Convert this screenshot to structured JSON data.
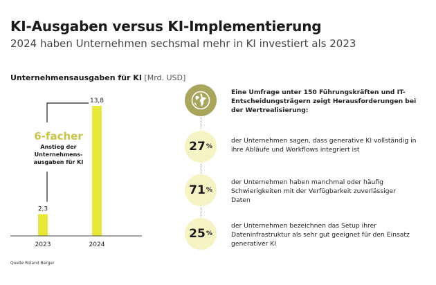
{
  "header": {
    "title": "KI-Ausgaben versus KI-Implementierung",
    "subtitle": "2024 haben Unternehmen sechsmal mehr in KI investiert als 2023"
  },
  "chart_data": {
    "type": "bar",
    "title": "Unternehmensausgaben für KI",
    "unit": "[Mrd. USD]",
    "categories": [
      "2023",
      "2024"
    ],
    "values": [
      2.3,
      13.8
    ],
    "value_labels": [
      "2,3",
      "13,8"
    ],
    "ylim": [
      0,
      13.8
    ],
    "color": "#e8e83a",
    "annotation": {
      "highlight": "6-facher",
      "text": "Anstieg der Unternehmens-ausgaben für KI",
      "color": "#c9c34a"
    }
  },
  "survey": {
    "intro": "Eine Umfrage unter 150 Führungskräften und IT-Entscheidungsträgern zeigt Herausforderungen bei der Wertrealisierung:",
    "icon": "globe-icon",
    "items": [
      {
        "percent": "27",
        "symbol": "%",
        "text": "der Unternehmen sagen, dass generative KI vollständig in ihre Abläufe und Workflows integriert ist"
      },
      {
        "percent": "71",
        "symbol": "%",
        "text": "der Unternehmen haben manchmal oder häufig Schwierigkeiten mit der Verfügbarkeit zuverlässiger Daten"
      },
      {
        "percent": "25",
        "symbol": "%",
        "text": "der Unternehmen bezeichnen das Setup ihrer Dateninfrastruktur als sehr gut geeignet für den Einsatz generativer KI"
      }
    ]
  },
  "source": "Quelle Roland Berger",
  "colors": {
    "accent": "#e8e83a",
    "circle": "#f6f3c5",
    "globe_bg": "#a9a55c"
  }
}
